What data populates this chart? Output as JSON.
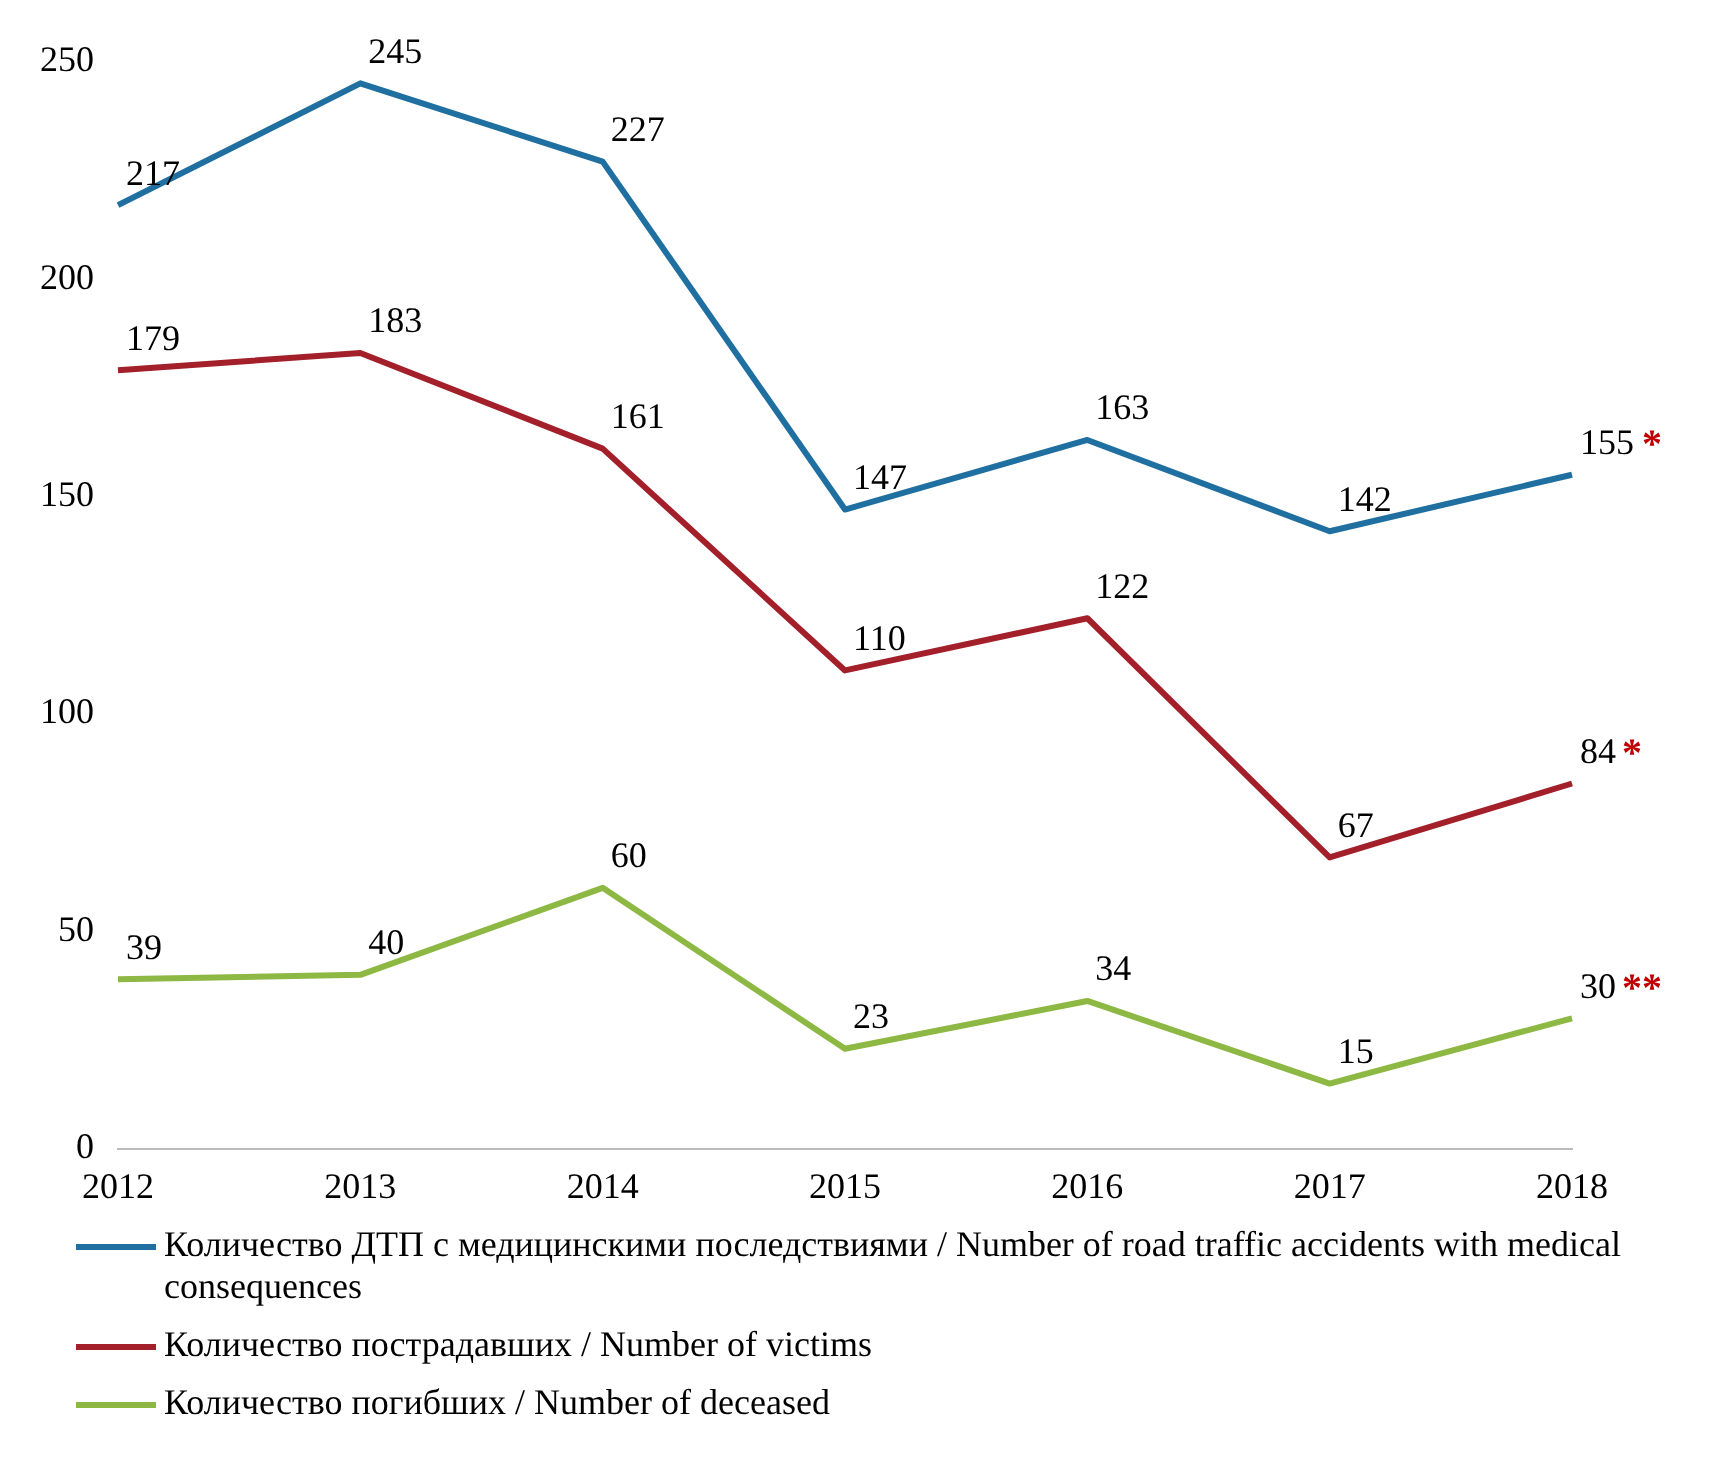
{
  "chart_data": {
    "type": "line",
    "categories": [
      "2012",
      "2013",
      "2014",
      "2015",
      "2016",
      "2017",
      "2018"
    ],
    "ylim": [
      0,
      250
    ],
    "yticks": [
      0,
      50,
      100,
      150,
      200,
      250
    ],
    "grid": false,
    "legend": "bottom",
    "marker": "none",
    "line_style": "solid",
    "series": [
      {
        "name": "Количество ДТП с медицинскими последствиями / Number of road traffic accidents with medical consequences",
        "color": "#1f6fa0",
        "values": [
          217,
          245,
          227,
          147,
          163,
          142,
          155
        ],
        "value_labels": [
          "217",
          "245",
          "227",
          "147",
          "163",
          "142",
          "155*"
        ]
      },
      {
        "name": "Количество пострадавших / Number of victims",
        "color": "#a3202a",
        "values": [
          179,
          183,
          161,
          110,
          122,
          67,
          84
        ],
        "value_labels": [
          "179",
          "183",
          "161",
          "110",
          "122",
          "67",
          "84*"
        ]
      },
      {
        "name": "Количество погибших / Number of deceased",
        "color": "#8db843",
        "values": [
          39,
          40,
          60,
          23,
          34,
          15,
          30
        ],
        "value_labels": [
          "39",
          "40",
          "60",
          "23",
          "34",
          "15",
          "30**"
        ]
      }
    ]
  }
}
